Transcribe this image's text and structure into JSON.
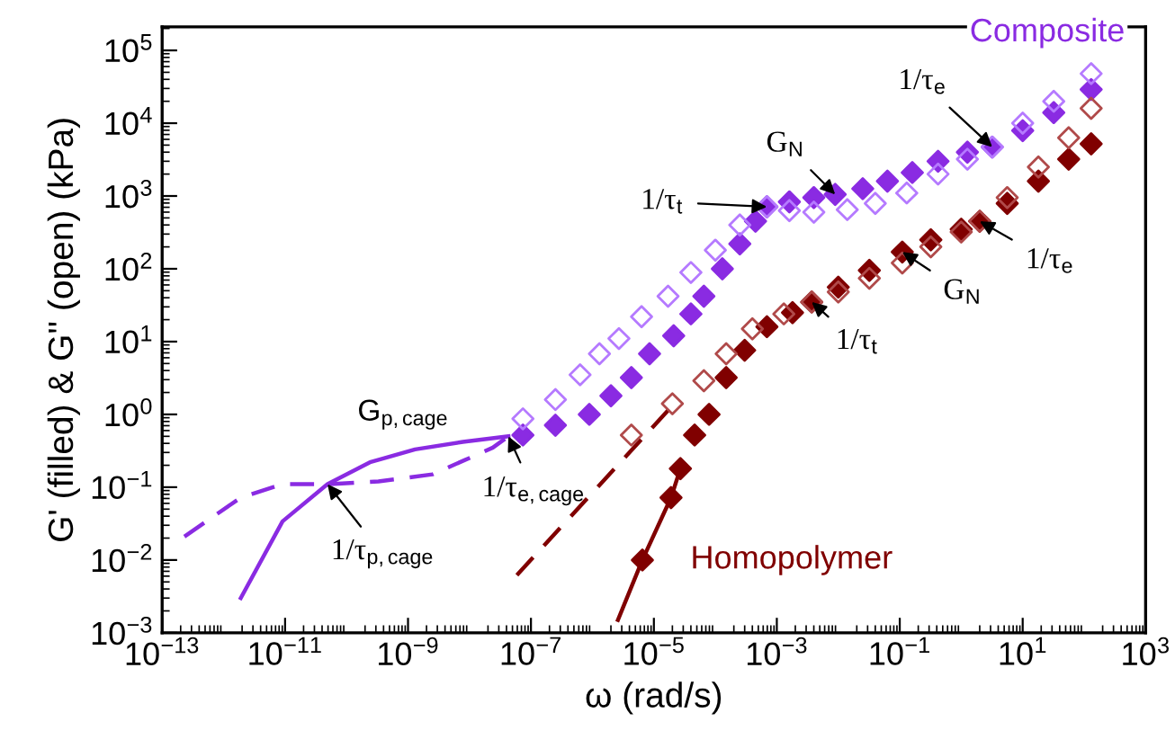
{
  "chart_data": {
    "type": "scatter",
    "xlabel": "ω (rad/s)",
    "ylabel": "G' (filled) & G'' (open) (kPa)",
    "log": "xy",
    "grid": false,
    "legend": false,
    "xlim": [
      1e-13,
      1000
    ],
    "ylim": [
      0.001,
      210000
    ],
    "xticks": [
      {
        "value": 1e-13,
        "label": "10$^{−13}$"
      },
      {
        "value": 1e-11,
        "label": "10$^{−11}$"
      },
      {
        "value": 1e-09,
        "label": "10$^{−9}$"
      },
      {
        "value": 1e-07,
        "label": "10$^{−7}$"
      },
      {
        "value": 1e-05,
        "label": "10$^{−5}$"
      },
      {
        "value": 0.001,
        "label": "10$^{−3}$"
      },
      {
        "value": 0.1,
        "label": "10$^{−1}$"
      },
      {
        "value": 10,
        "label": "10$^{1}$"
      },
      {
        "value": 1000,
        "label": "10$^{3}$"
      }
    ],
    "yticks": [
      {
        "value": 0.001,
        "label": "10$^{−3}$"
      },
      {
        "value": 0.01,
        "label": "10$^{−2}$"
      },
      {
        "value": 0.1,
        "label": "10$^{−1}$"
      },
      {
        "value": 1,
        "label": "10$^{0}$"
      },
      {
        "value": 10,
        "label": "10$^{1}$"
      },
      {
        "value": 100,
        "label": "10$^{2}$"
      },
      {
        "value": 1000,
        "label": "10$^{3}$"
      },
      {
        "value": 10000,
        "label": "10$^{4}$"
      },
      {
        "value": 100000,
        "label": "10$^{5}$"
      }
    ],
    "series": [
      {
        "type": "line",
        "line_style": "solid",
        "color": "#8a2be2",
        "x": [
          1.9e-12,
          9.1e-12,
          4.9e-11,
          2.4e-10,
          1.3e-09,
          7.8e-09,
          4.3e-08
        ],
        "values": [
          0.003,
          0.034,
          0.11,
          0.22,
          0.33,
          0.42,
          0.5
        ]
      },
      {
        "type": "line",
        "line_style": "dashed",
        "color": "#8a2be2",
        "x": [
          2.3e-13,
          1.9e-12,
          9.1e-12,
          4.9e-11,
          3.3e-10,
          2.5e-09,
          2.4e-08,
          4.3e-08
        ],
        "values": [
          0.021,
          0.072,
          0.11,
          0.11,
          0.12,
          0.15,
          0.35,
          0.5
        ]
      },
      {
        "name": "Composite",
        "marker": "diamond",
        "color": "#8a2be2",
        "x": [
          7.4e-08,
          2.5e-07,
          8.9e-07,
          2e-06,
          4.3e-06,
          8.5e-06,
          2.1e-05,
          4e-05,
          6.5e-05,
          0.00013,
          0.00025,
          0.00045,
          0.00069,
          0.0016,
          0.004,
          0.0089,
          0.025,
          0.063,
          0.16,
          0.42,
          1.26,
          3.2,
          10,
          32,
          130
        ],
        "values": [
          0.52,
          0.71,
          1.0,
          1.8,
          3.2,
          6.8,
          12,
          24,
          42,
          100,
          220,
          450,
          710,
          830,
          950,
          1050,
          1260,
          1600,
          2100,
          3000,
          4000,
          4700,
          7900,
          14000,
          29000
        ]
      },
      {
        "marker": "diamond-open",
        "color": "#b57aff",
        "x": [
          7.4e-08,
          2.5e-07,
          6.3e-07,
          1.3e-06,
          2.7e-06,
          6.3e-06,
          1.7e-05,
          4e-05,
          0.0001,
          0.00025,
          0.00069,
          0.0016,
          0.004,
          0.014,
          0.04,
          0.13,
          0.42,
          1.26,
          3.2,
          10,
          32,
          130
        ],
        "values": [
          0.87,
          1.6,
          3.5,
          6.8,
          11,
          22,
          42,
          89,
          180,
          400,
          710,
          630,
          600,
          650,
          790,
          1100,
          2000,
          3200,
          4700,
          10000,
          20000,
          48000
        ]
      },
      {
        "name": "Homopolymer",
        "type": "line",
        "line_style": "solid",
        "color": "#800000",
        "x": [
          2.6e-06,
          6.5e-06,
          1.9e-05,
          2.7e-05
        ],
        "values": [
          0.0015,
          0.01,
          0.072,
          0.18
        ]
      },
      {
        "type": "line",
        "line_style": "dashed",
        "color": "#800000",
        "x": [
          5.9e-08,
          2.3e-05
        ],
        "values": [
          0.0062,
          1.5
        ]
      },
      {
        "marker": "diamond",
        "color": "#800000",
        "x": [
          6.5e-06,
          1.9e-05,
          2.7e-05,
          4.6e-05,
          7.9e-05,
          0.00015,
          0.0003,
          0.00069,
          0.0018,
          0.0037,
          0.01,
          0.032,
          0.11,
          0.32,
          1,
          2,
          5.6,
          18,
          56,
          130
        ],
        "values": [
          0.01,
          0.072,
          0.18,
          0.52,
          1.0,
          3.2,
          7.6,
          16,
          25,
          35,
          56,
          95,
          170,
          250,
          350,
          450,
          790,
          1600,
          3200,
          5200
        ]
      },
      {
        "marker": "diamond-open",
        "color": "#b04a4a",
        "x": [
          4.3e-06,
          2e-05,
          6.5e-05,
          0.00015,
          0.0004,
          0.0013,
          0.0037,
          0.01,
          0.032,
          0.11,
          0.32,
          1,
          2,
          5.6,
          18,
          56,
          130
        ],
        "values": [
          0.52,
          1.4,
          2.9,
          6.8,
          15,
          24,
          35,
          48,
          74,
          120,
          200,
          320,
          450,
          950,
          2500,
          6300,
          16000
        ]
      }
    ],
    "annotations": [
      {
        "text": "1/τ$_{t}$",
        "x": 0.00069,
        "y": 710
      },
      {
        "text": "G$_{N}$",
        "x": 0.0089,
        "y": 1050
      },
      {
        "text": "1/τ$_{e}$",
        "x": 3.2,
        "y": 4700
      },
      {
        "text": "1/τ$_{e}$",
        "x": 2,
        "y": 450
      },
      {
        "text": "G$_{N}$",
        "x": 0.11,
        "y": 170
      },
      {
        "text": "1/τ$_{t}$",
        "x": 0.0037,
        "y": 35
      },
      "G$_{p,cage}$",
      {
        "text": "1/τ$_{e,cage}$",
        "x": 4.3e-08,
        "y": 0.5
      },
      {
        "text": "1/τ$_{p,cage}$",
        "x": 4.9e-11,
        "y": 0.11
      }
    ]
  }
}
